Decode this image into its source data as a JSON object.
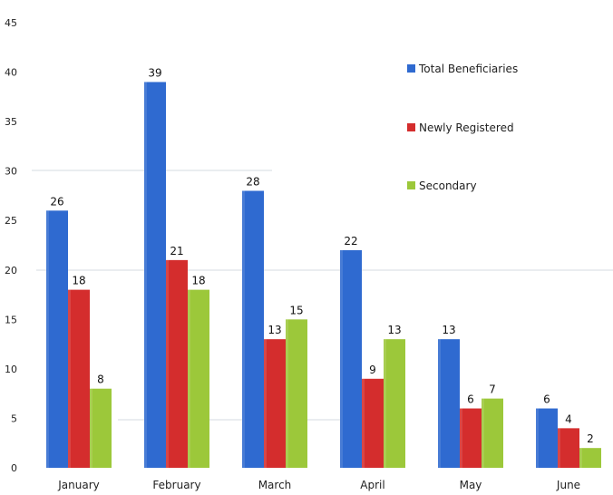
{
  "chart_data": {
    "type": "bar",
    "title": "",
    "xlabel": "",
    "ylabel": "",
    "categories": [
      "January",
      "February",
      "March",
      "April",
      "May",
      "June"
    ],
    "series": [
      {
        "name": "Total Beneficiaries",
        "values": [
          26,
          39,
          28,
          22,
          13,
          6
        ],
        "color": "#2f6ad0"
      },
      {
        "name": "Newly Registered",
        "values": [
          18,
          21,
          13,
          9,
          6,
          4
        ],
        "color": "#d42d2d"
      },
      {
        "name": "Secondary",
        "values": [
          8,
          18,
          15,
          13,
          7,
          2
        ],
        "color": "#9cc83a"
      }
    ],
    "ylim": [
      0,
      45
    ],
    "yticks": [
      0,
      5,
      10,
      15,
      20,
      25,
      30,
      35,
      40,
      45
    ],
    "data_labels": true,
    "grid": false,
    "legend_position": "right"
  }
}
